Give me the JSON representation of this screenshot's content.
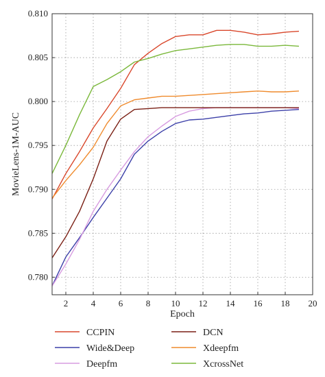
{
  "chart_data": {
    "type": "line",
    "xlabel": "Epoch",
    "ylabel": "MovieLens-1M-AUC",
    "xlim": [
      1,
      20
    ],
    "ylim": [
      0.778,
      0.81
    ],
    "xticks": [
      2,
      4,
      6,
      8,
      10,
      12,
      14,
      16,
      18,
      20
    ],
    "xtick_labels": [
      "2",
      "4",
      "6",
      "8",
      "10",
      "12",
      "14",
      "16",
      "18",
      "20"
    ],
    "yticks": [
      0.78,
      0.785,
      0.79,
      0.795,
      0.8,
      0.805,
      0.81
    ],
    "ytick_labels": [
      "0.780",
      "0.785",
      "0.790",
      "0.795",
      "0.800",
      "0.805",
      "0.810"
    ],
    "grid": true,
    "legend_position": "below",
    "series": [
      {
        "name": "CCPIN",
        "color": "#d9472b",
        "x": [
          1,
          2,
          3,
          4,
          5,
          6,
          7,
          8,
          9,
          10,
          11,
          12,
          13,
          14,
          15,
          16,
          17,
          18,
          19
        ],
        "y": [
          0.7889,
          0.7918,
          0.7943,
          0.797,
          0.7992,
          0.8015,
          0.8042,
          0.8055,
          0.8066,
          0.8074,
          0.8076,
          0.8076,
          0.8081,
          0.8081,
          0.8079,
          0.8076,
          0.8077,
          0.8079,
          0.808
        ]
      },
      {
        "name": "Wide&Deep",
        "color": "#3b3fa8",
        "x": [
          1,
          2,
          3,
          4,
          5,
          6,
          7,
          8,
          9,
          10,
          11,
          12,
          13,
          14,
          15,
          16,
          17,
          18,
          19
        ],
        "y": [
          0.779,
          0.7823,
          0.7845,
          0.7868,
          0.789,
          0.7912,
          0.794,
          0.7955,
          0.7966,
          0.7975,
          0.7979,
          0.798,
          0.7982,
          0.7984,
          0.7986,
          0.7987,
          0.7989,
          0.799,
          0.7991
        ]
      },
      {
        "name": "Deepfm",
        "color": "#d79be0",
        "x": [
          1,
          2,
          3,
          4,
          5,
          6,
          7,
          8,
          9,
          10,
          11,
          12,
          13,
          14,
          15,
          16,
          17,
          18,
          19
        ],
        "y": [
          0.779,
          0.7815,
          0.7843,
          0.7875,
          0.79,
          0.7922,
          0.7943,
          0.796,
          0.7972,
          0.7983,
          0.7989,
          0.7992,
          0.7993,
          0.7993,
          0.7993,
          0.7993,
          0.7993,
          0.7993,
          0.7992
        ]
      },
      {
        "name": "DCN",
        "color": "#7a1f14",
        "x": [
          1,
          2,
          3,
          4,
          5,
          6,
          7,
          8,
          9,
          10,
          11,
          12,
          13,
          14,
          15,
          16,
          17,
          18,
          19
        ],
        "y": [
          0.7822,
          0.7846,
          0.7875,
          0.7912,
          0.7955,
          0.798,
          0.7991,
          0.7992,
          0.7993,
          0.7993,
          0.7993,
          0.7993,
          0.7993,
          0.7993,
          0.7993,
          0.7993,
          0.7993,
          0.7993,
          0.7993
        ]
      },
      {
        "name": "Xdeepfm",
        "color": "#ef8a2c",
        "x": [
          1,
          2,
          3,
          4,
          5,
          6,
          7,
          8,
          9,
          10,
          11,
          12,
          13,
          14,
          15,
          16,
          17,
          18,
          19
        ],
        "y": [
          0.789,
          0.791,
          0.7928,
          0.7948,
          0.7975,
          0.7995,
          0.8002,
          0.8004,
          0.8006,
          0.8006,
          0.8007,
          0.8008,
          0.8009,
          0.801,
          0.8011,
          0.8012,
          0.8011,
          0.8011,
          0.8012
        ]
      },
      {
        "name": "XcrossNet",
        "color": "#7ab83a",
        "x": [
          1,
          2,
          3,
          4,
          5,
          6,
          7,
          8,
          9,
          10,
          11,
          12,
          13,
          14,
          15,
          16,
          17,
          18,
          19
        ],
        "y": [
          0.7918,
          0.795,
          0.7985,
          0.8017,
          0.8025,
          0.8034,
          0.8045,
          0.8049,
          0.8054,
          0.8058,
          0.806,
          0.8062,
          0.8064,
          0.8065,
          0.8065,
          0.8063,
          0.8063,
          0.8064,
          0.8063
        ]
      }
    ],
    "legend": [
      {
        "label": "CCPIN",
        "color": "#d9472b"
      },
      {
        "label": "DCN",
        "color": "#7a1f14"
      },
      {
        "label": "Wide&Deep",
        "color": "#3b3fa8"
      },
      {
        "label": "Xdeepfm",
        "color": "#ef8a2c"
      },
      {
        "label": "Deepfm",
        "color": "#d79be0"
      },
      {
        "label": "XcrossNet",
        "color": "#7ab83a"
      }
    ]
  }
}
